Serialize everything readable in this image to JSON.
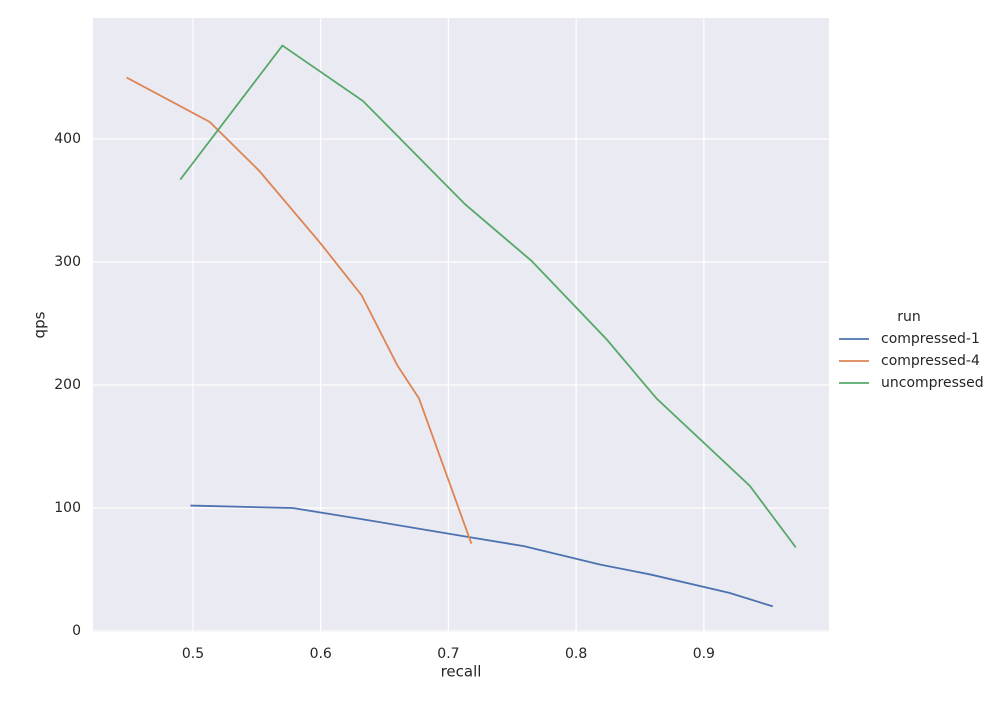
{
  "chart_data": {
    "type": "line",
    "x_label": "recall",
    "y_label": "qps",
    "legend_title": "run",
    "series": [
      {
        "name": "compressed-1",
        "color": "#4c72b0",
        "x": [
          0.498,
          0.578,
          0.632,
          0.718,
          0.759,
          0.819,
          0.858,
          0.92,
          0.954
        ],
        "values": [
          102,
          100,
          91,
          76,
          69,
          54,
          46,
          31,
          20
        ]
      },
      {
        "name": "compressed-4",
        "color": "#dd8452",
        "x": [
          0.448,
          0.513,
          0.552,
          0.6,
          0.632,
          0.66,
          0.677,
          0.718
        ],
        "values": [
          450,
          414,
          374,
          315,
          273,
          216,
          189,
          71
        ]
      },
      {
        "name": "uncompressed",
        "color": "#55a868",
        "x": [
          0.49,
          0.57,
          0.633,
          0.713,
          0.765,
          0.824,
          0.863,
          0.936,
          0.972
        ],
        "values": [
          367,
          476,
          431,
          347,
          301,
          237,
          189,
          118,
          68
        ]
      }
    ],
    "xlim": [
      0.4217,
      0.998
    ],
    "xticks": [
      0.5,
      0.6,
      0.7,
      0.8,
      0.9
    ],
    "ylim": [
      -0.8,
      498.4
    ],
    "yticks": [
      0,
      100,
      200,
      300,
      400
    ],
    "grid": true,
    "legend": "right"
  }
}
